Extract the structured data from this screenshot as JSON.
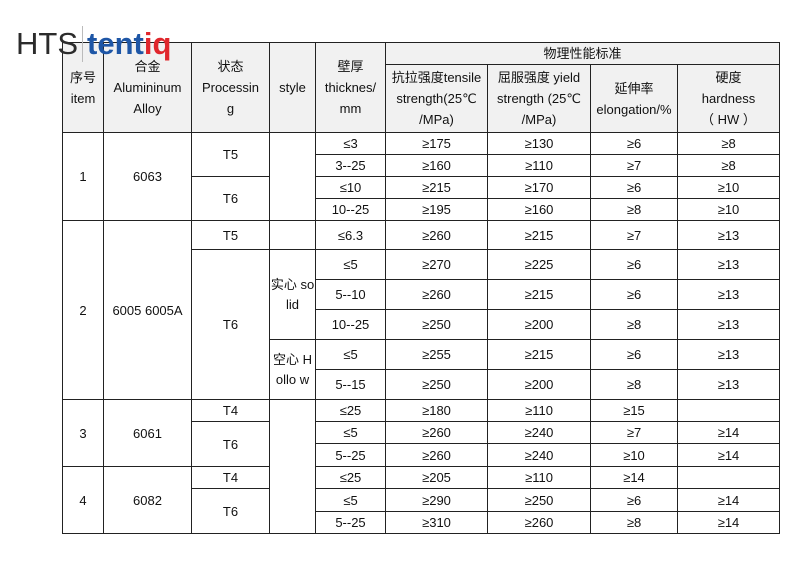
{
  "logo": {
    "left": "HTS",
    "brand_a": "tent",
    "brand_b": "iq"
  },
  "header": {
    "item": [
      "序号",
      "item"
    ],
    "alloy": [
      "合金",
      "Alumininum",
      "Alloy"
    ],
    "state": [
      "状态",
      "Processin",
      "g"
    ],
    "style": "style",
    "thickness": [
      "壁厚",
      "thicknes/",
      "mm"
    ],
    "group": "物理性能标准",
    "tensile": [
      "抗拉强度tensile",
      "strength(25℃",
      "/MPa)"
    ],
    "yield": [
      "屈服强度 yield",
      "strength (25℃",
      "/MPa)"
    ],
    "elongation": [
      "延伸率",
      "elongation/%"
    ],
    "hardness": [
      "硬度",
      "hardness",
      "（ HW ）"
    ]
  },
  "rows": [
    {
      "item": "1",
      "alloy": "6063",
      "state": "T5",
      "style": "",
      "v": [
        "≤3",
        "≥175",
        "≥130",
        "≥6",
        "≥8"
      ]
    },
    {
      "v": [
        "3--25",
        "≥160",
        "≥110",
        "≥7",
        "≥8"
      ]
    },
    {
      "state": "T6",
      "v": [
        "≤10",
        "≥215",
        "≥170",
        "≥6",
        "≥10"
      ]
    },
    {
      "v": [
        "10--25",
        "≥195",
        "≥160",
        "≥8",
        "≥10"
      ]
    },
    {
      "item": "2",
      "alloy": "6005  6005A",
      "state": "T5",
      "style": "",
      "v": [
        "≤6.3",
        "≥260",
        "≥215",
        "≥7",
        "≥13"
      ]
    },
    {
      "state": "T6",
      "style": "实心 solid",
      "v": [
        "≤5",
        "≥270",
        "≥225",
        "≥6",
        "≥13"
      ]
    },
    {
      "v": [
        "5--10",
        "≥260",
        "≥215",
        "≥6",
        "≥13"
      ]
    },
    {
      "v": [
        "10--25",
        "≥250",
        "≥200",
        "≥8",
        "≥13"
      ]
    },
    {
      "style": "空心 Hollo w",
      "v": [
        "≤5",
        "≥255",
        "≥215",
        "≥6",
        "≥13"
      ]
    },
    {
      "v": [
        "5--15",
        "≥250",
        "≥200",
        "≥8",
        "≥13"
      ]
    },
    {
      "item": "3",
      "alloy": "6061",
      "state": "T4",
      "style": "",
      "v": [
        "≤25",
        "≥180",
        "≥110",
        "≥15",
        ""
      ]
    },
    {
      "state": "T6",
      "v": [
        "≤5",
        "≥260",
        "≥240",
        "≥7",
        "≥14"
      ]
    },
    {
      "v": [
        "5--25",
        "≥260",
        "≥240",
        "≥10",
        "≥14"
      ]
    },
    {
      "item": "4",
      "alloy": "6082",
      "state": "T4",
      "v": [
        "≤25",
        "≥205",
        "≥110",
        "≥14",
        ""
      ]
    },
    {
      "state": "T6",
      "v": [
        "≤5",
        "≥290",
        "≥250",
        "≥6",
        "≥14"
      ]
    },
    {
      "v": [
        "5--25",
        "≥310",
        "≥260",
        "≥8",
        "≥14"
      ]
    }
  ]
}
